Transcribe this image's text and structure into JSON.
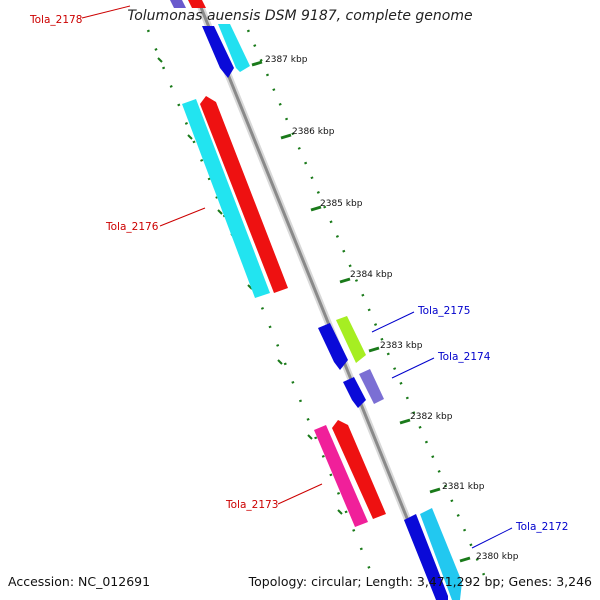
{
  "title": "Tolumonas auensis DSM 9187, complete genome",
  "footer": {
    "accession": "Accession: NC_012691",
    "topology": "Topology: circular; Length: 3,471,292 bp; Genes: 3,246"
  },
  "colors": {
    "gene_label_red": "#cc0000",
    "gene_label_blue": "#0000cc",
    "tick": "#1a7a1a",
    "backbone": "#8a8a8a"
  },
  "ticks": [
    "2387 kbp",
    "2386 kbp",
    "2385 kbp",
    "2384 kbp",
    "2383 kbp",
    "2382 kbp",
    "2381 kbp",
    "2380 kbp"
  ],
  "gene_labels": [
    {
      "text": "Tola_2178",
      "color": "red"
    },
    {
      "text": "Tola_2176",
      "color": "red"
    },
    {
      "text": "Tola_2175",
      "color": "blue"
    },
    {
      "text": "Tola_2174",
      "color": "blue"
    },
    {
      "text": "Tola_2173",
      "color": "red"
    },
    {
      "text": "Tola_2172",
      "color": "blue"
    }
  ]
}
